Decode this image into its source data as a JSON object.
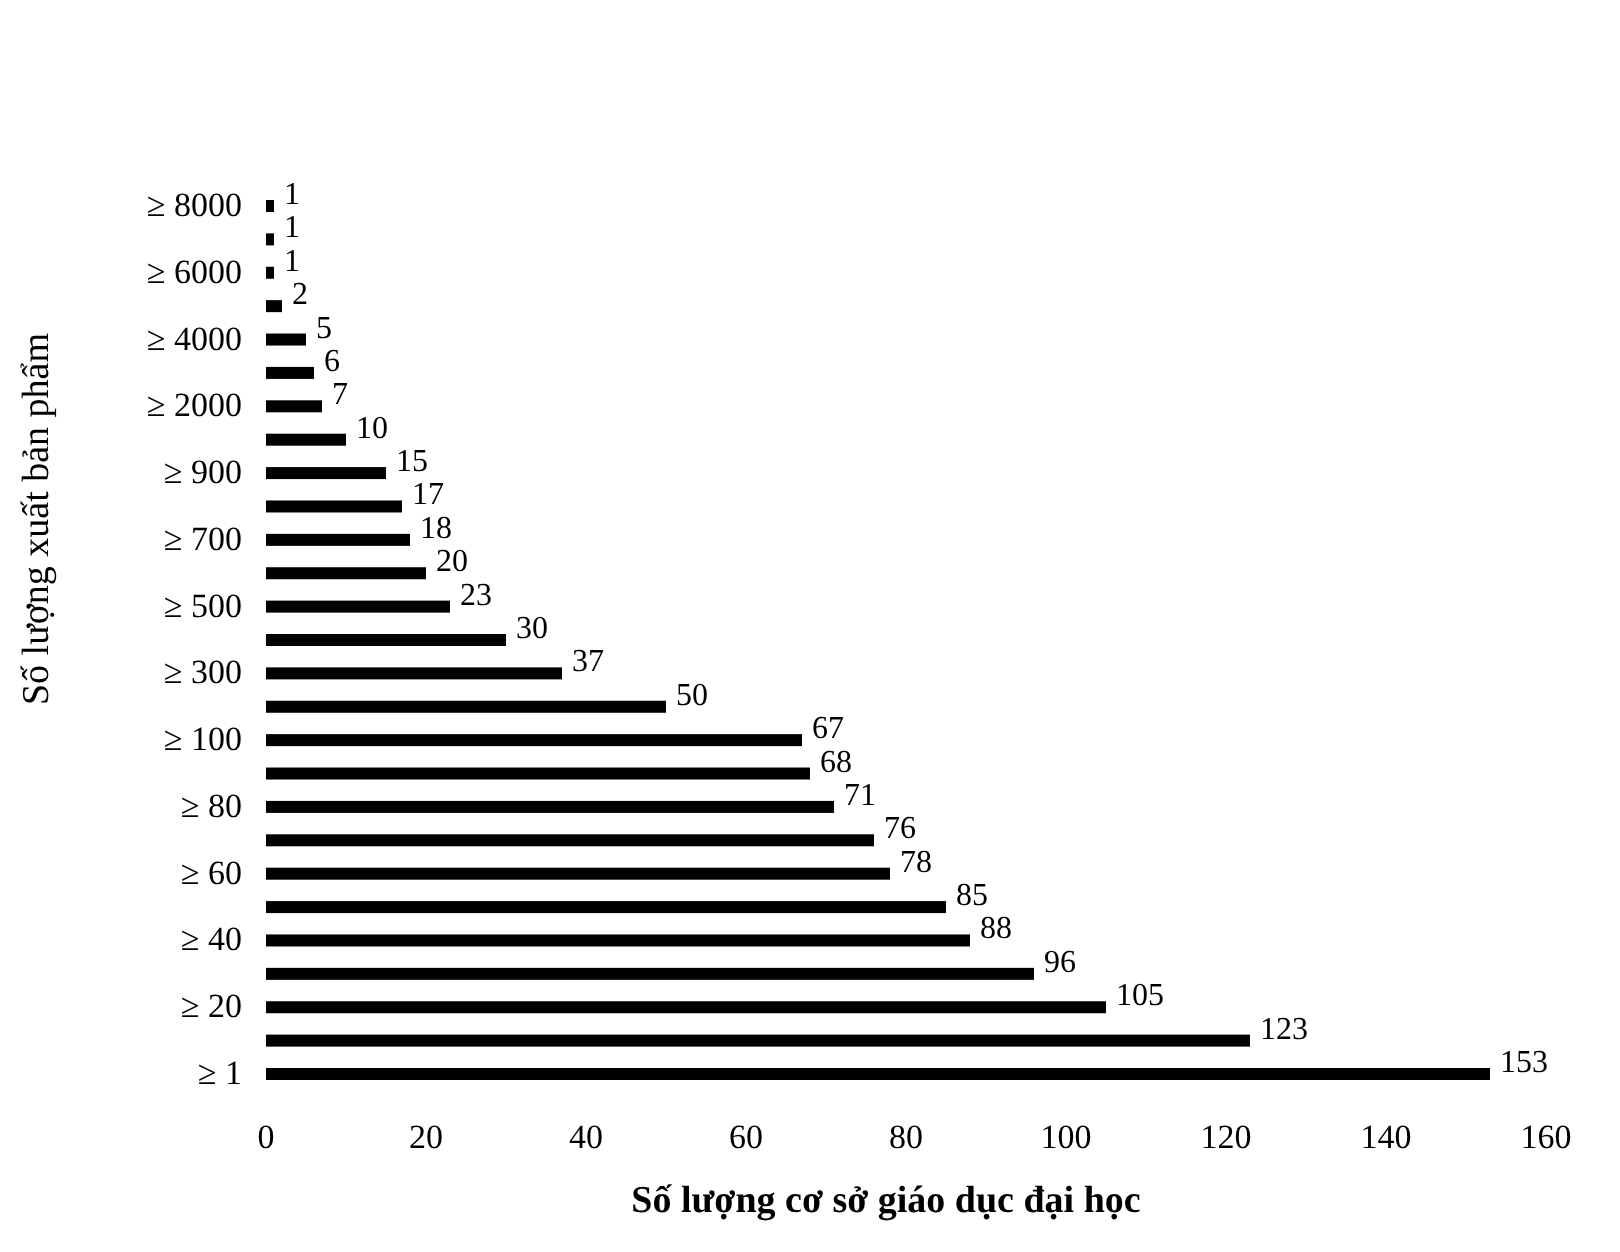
{
  "chart_data": {
    "type": "bar",
    "orientation": "horizontal",
    "xlabel": "Số lượng cơ sở giáo dục đại học",
    "ylabel": "Số lượng xuất bản phẩm",
    "categories": [
      "≥ 8000",
      null,
      "≥ 6000",
      null,
      "≥ 4000",
      null,
      "≥ 2000",
      null,
      "≥ 900",
      null,
      "≥ 700",
      null,
      "≥ 500",
      null,
      "≥ 300",
      null,
      "≥ 100",
      null,
      "≥ 80",
      null,
      "≥ 60",
      null,
      "≥ 40",
      null,
      "≥ 20",
      null,
      "≥ 1"
    ],
    "values": [
      1,
      1,
      1,
      2,
      5,
      6,
      7,
      10,
      15,
      17,
      18,
      20,
      23,
      30,
      37,
      50,
      67,
      68,
      71,
      76,
      78,
      85,
      88,
      96,
      105,
      123,
      153
    ],
    "color": "#000000",
    "data_labels": true,
    "xlim": [
      0,
      160
    ],
    "xticks": [
      0,
      20,
      40,
      60,
      80,
      100,
      120,
      140,
      160
    ],
    "grid": false
  }
}
